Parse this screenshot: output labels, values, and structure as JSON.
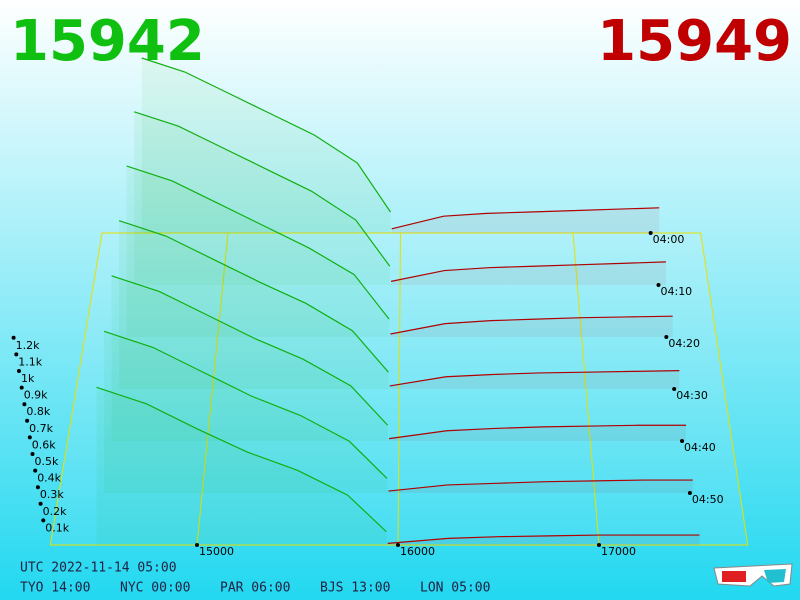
{
  "chart_data": {
    "type": "depth3d",
    "bid_price": 15942,
    "ask_price": 15949,
    "bid_color": "#10b010",
    "ask_color": "#b00000",
    "xlim": [
      14270,
      17740
    ],
    "xticks": [
      15000,
      16000,
      17000
    ],
    "yticks": [
      {
        "value": 100,
        "label": "0.1k"
      },
      {
        "value": 200,
        "label": "0.2k"
      },
      {
        "value": 300,
        "label": "0.3k"
      },
      {
        "value": 400,
        "label": "0.4k"
      },
      {
        "value": 500,
        "label": "0.5k"
      },
      {
        "value": 600,
        "label": "0.6k"
      },
      {
        "value": 700,
        "label": "0.7k"
      },
      {
        "value": 800,
        "label": "0.8k"
      },
      {
        "value": 900,
        "label": "0.9k"
      },
      {
        "value": 1000,
        "label": "1k"
      },
      {
        "value": 1100,
        "label": "1.1k"
      },
      {
        "value": 1200,
        "label": "1.2k"
      }
    ],
    "times": [
      "04:00",
      "04:10",
      "04:20",
      "04:30",
      "04:40",
      "04:50",
      null
    ],
    "bid_prices": [
      14500,
      14750,
      15000,
      15250,
      15500,
      15750,
      15942
    ],
    "ask_prices": [
      15949,
      16250,
      16500,
      16750,
      17000,
      17250,
      17500
    ],
    "bids": [
      [
        1250,
        1150,
        1000,
        850,
        700,
        500,
        150
      ],
      [
        1200,
        1100,
        950,
        800,
        650,
        450,
        130
      ],
      [
        1150,
        1050,
        900,
        750,
        600,
        420,
        120
      ],
      [
        1100,
        1000,
        850,
        700,
        560,
        380,
        110
      ],
      [
        1050,
        950,
        800,
        650,
        520,
        350,
        100
      ],
      [
        1000,
        900,
        750,
        600,
        480,
        320,
        90
      ],
      [
        950,
        850,
        700,
        560,
        450,
        300,
        80
      ]
    ],
    "asks": [
      [
        30,
        120,
        140,
        150,
        160,
        170,
        180
      ],
      [
        25,
        100,
        120,
        130,
        140,
        150,
        160
      ],
      [
        20,
        90,
        110,
        120,
        130,
        135,
        140
      ],
      [
        20,
        80,
        95,
        105,
        110,
        115,
        120
      ],
      [
        15,
        65,
        80,
        90,
        95,
        100,
        100
      ],
      [
        12,
        50,
        60,
        70,
        75,
        80,
        80
      ],
      [
        10,
        40,
        50,
        55,
        60,
        60,
        60
      ]
    ]
  },
  "footer": {
    "utc": "UTC 2022-11-14 05:00",
    "cities": [
      "TYO 14:00",
      "NYC 00:00",
      "PAR 06:00",
      "BJS 13:00",
      "LON 05:00"
    ]
  }
}
